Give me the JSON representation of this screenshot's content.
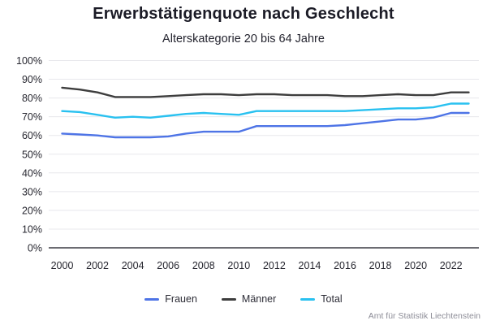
{
  "header": {
    "title": "Erwerbstätigenquote nach Geschlecht",
    "subtitle": "Alterskategorie 20 bis 64 Jahre"
  },
  "footer": {
    "source": "Amt für Statistik Liechtenstein"
  },
  "colors": {
    "frauen": "#4e74e6",
    "maenner": "#3d3d3d",
    "total": "#29c1f0",
    "gridline": "#e8e8ec",
    "axis": "#3c3c44"
  },
  "chart_data": {
    "type": "line",
    "title": "Erwerbstätigenquote nach Geschlecht",
    "subtitle": "Alterskategorie 20 bis 64 Jahre",
    "x": [
      2000,
      2001,
      2002,
      2003,
      2004,
      2005,
      2006,
      2007,
      2008,
      2009,
      2010,
      2011,
      2012,
      2013,
      2014,
      2015,
      2016,
      2017,
      2018,
      2019,
      2020,
      2021,
      2022,
      2023
    ],
    "x_tick_labels": [
      "2000",
      "2002",
      "2004",
      "2006",
      "2008",
      "2010",
      "2012",
      "2014",
      "2016",
      "2018",
      "2020",
      "2022"
    ],
    "y_tick_values": [
      0,
      10,
      20,
      30,
      40,
      50,
      60,
      70,
      80,
      90,
      100
    ],
    "y_tick_suffix": "%",
    "ylim": [
      0,
      100
    ],
    "grid": true,
    "legend_position": "bottom",
    "series": [
      {
        "name": "Frauen",
        "color": "#4e74e6",
        "values": [
          61,
          60.5,
          60,
          59,
          59,
          59,
          59.5,
          61,
          62,
          62,
          62,
          65,
          65,
          65,
          65,
          65,
          65.5,
          66.5,
          67.5,
          68.5,
          68.5,
          69.5,
          72,
          72
        ]
      },
      {
        "name": "Männer",
        "color": "#3d3d3d",
        "values": [
          85.5,
          84.5,
          83,
          80.5,
          80.5,
          80.5,
          81,
          81.5,
          82,
          82,
          81.5,
          82,
          82,
          81.5,
          81.5,
          81.5,
          81,
          81,
          81.5,
          82,
          81.5,
          81.5,
          83,
          83
        ]
      },
      {
        "name": "Total",
        "color": "#29c1f0",
        "values": [
          73,
          72.5,
          71,
          69.5,
          70,
          69.5,
          70.5,
          71.5,
          72,
          71.5,
          71,
          73,
          73,
          73,
          73,
          73,
          73,
          73.5,
          74,
          74.5,
          74.5,
          75,
          77,
          77
        ]
      }
    ]
  }
}
